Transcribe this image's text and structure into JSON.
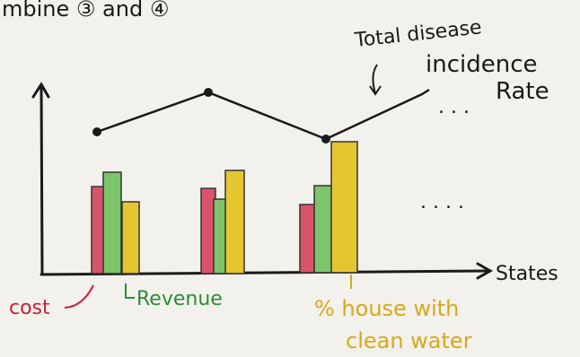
{
  "header": {
    "text": "mbine ③ and ④"
  },
  "line_label": [
    "Total disease",
    "incidence",
    "Rate"
  ],
  "x_axis_label": "States",
  "legend": {
    "cost": "cost",
    "revenue": "Revenue",
    "water": [
      "% house with",
      "clean water"
    ]
  },
  "continuation": [
    ". . .",
    ". . . ."
  ]
}
